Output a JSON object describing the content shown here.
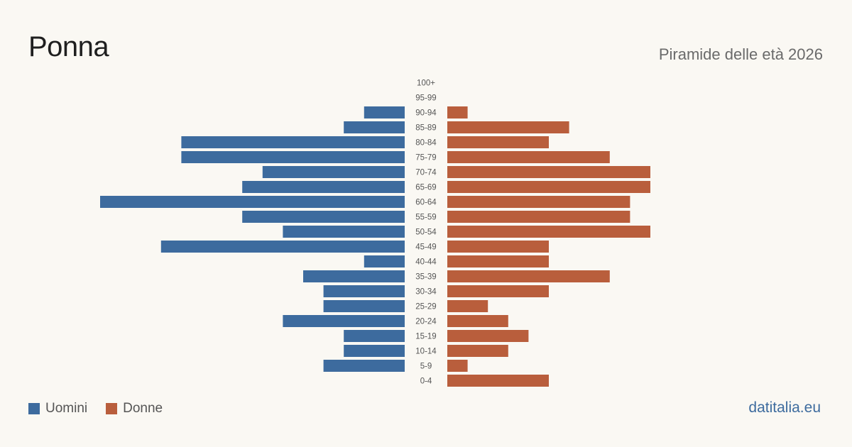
{
  "header": {
    "title": "Ponna",
    "subtitle": "Piramide delle età 2026"
  },
  "legend": {
    "men_label": "Uomini",
    "women_label": "Donne"
  },
  "brand": "datitalia.eu",
  "colors": {
    "men": "#3d6b9e",
    "women": "#b95e3c",
    "background": "#faf8f3"
  },
  "chart_data": {
    "type": "bar",
    "orientation": "horizontal-pyramid",
    "categories": [
      "100+",
      "95-99",
      "90-94",
      "85-89",
      "80-84",
      "75-79",
      "70-74",
      "65-69",
      "60-64",
      "55-59",
      "50-54",
      "45-49",
      "40-44",
      "35-39",
      "30-34",
      "25-29",
      "20-24",
      "15-19",
      "10-14",
      "5-9",
      "0-4"
    ],
    "series": [
      {
        "name": "Uomini",
        "values": [
          0,
          0,
          2,
          3,
          11,
          11,
          7,
          8,
          15,
          8,
          6,
          12,
          2,
          5,
          4,
          4,
          6,
          3,
          3,
          4,
          0
        ]
      },
      {
        "name": "Donne",
        "values": [
          0,
          0,
          1,
          6,
          5,
          8,
          10,
          10,
          9,
          9,
          10,
          5,
          5,
          8,
          5,
          2,
          3,
          4,
          3,
          1,
          5
        ]
      }
    ],
    "title": "Ponna",
    "subtitle": "Piramide delle età 2026",
    "xlabel": "",
    "ylabel": "",
    "grid": false,
    "legend_position": "bottom-left"
  }
}
